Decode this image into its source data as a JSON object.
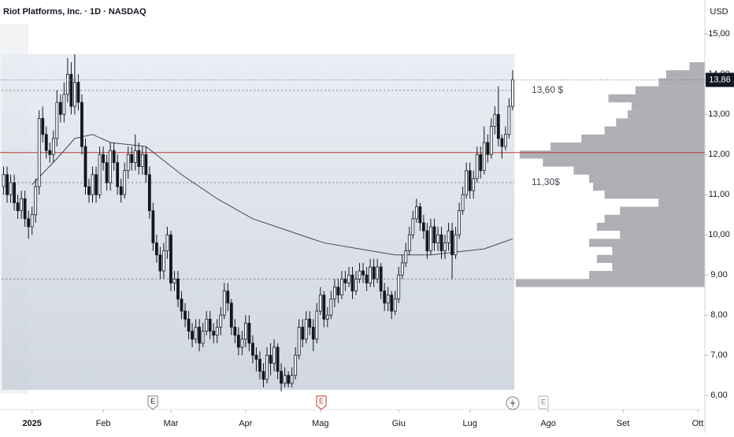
{
  "chart_data": {
    "type": "candlestick",
    "title": "Riot Platforms, Inc. · 1D · NASDAQ",
    "currency": "USD",
    "candle_color": "#131722",
    "xlim": [
      -1,
      197
    ],
    "xticks": [
      {
        "value": 8,
        "label": "2025"
      },
      {
        "value": 28,
        "label": "Feb"
      },
      {
        "value": 47,
        "label": "Mar"
      },
      {
        "value": 68,
        "label": "Apr"
      },
      {
        "value": 89,
        "label": "Mag"
      },
      {
        "value": 111,
        "label": "Giu"
      },
      {
        "value": 131,
        "label": "Lug"
      },
      {
        "value": 153,
        "label": "Ago"
      },
      {
        "value": 174,
        "label": "Set"
      },
      {
        "value": 195,
        "label": "Ott"
      }
    ],
    "ylim": [
      5.65,
      15.85
    ],
    "yticks": [
      {
        "value": 15,
        "label": "15,00"
      },
      {
        "value": 14,
        "label": "14,00"
      },
      {
        "value": 13,
        "label": "13,00"
      },
      {
        "value": 12,
        "label": "12,00"
      },
      {
        "value": 11,
        "label": "11,00"
      },
      {
        "value": 10,
        "label": "10,00"
      },
      {
        "value": 9,
        "label": "9,00"
      },
      {
        "value": 8,
        "label": "8,00"
      },
      {
        "value": 7,
        "label": "7,00"
      },
      {
        "value": 6,
        "label": "6,00"
      }
    ],
    "open": [
      11.2,
      11.5,
      11.0,
      11.3,
      10.8,
      10.6,
      10.9,
      10.4,
      10.2,
      10.5,
      11.2,
      12.9,
      12.5,
      12.1,
      12.0,
      12.4,
      13.3,
      13.0,
      13.5,
      14.0,
      13.2,
      13.8,
      13.3,
      12.2,
      11.2,
      11.0,
      11.5,
      11.0,
      12.0,
      11.8,
      11.3,
      12.1,
      11.8,
      11.2,
      11.0,
      11.6,
      12.0,
      11.8,
      12.1,
      11.7,
      12.0,
      11.5,
      10.6,
      9.8,
      9.5,
      9.1,
      9.6,
      10.0,
      8.8,
      8.9,
      8.4,
      8.1,
      7.9,
      7.6,
      7.4,
      7.7,
      7.3,
      7.6,
      7.9,
      7.6,
      7.5,
      7.7,
      8.0,
      8.6,
      8.3,
      7.7,
      7.5,
      7.2,
      7.4,
      7.8,
      7.3,
      7.0,
      6.9,
      6.6,
      6.4,
      7.0,
      6.8,
      7.2,
      6.6,
      6.3,
      6.5,
      6.3,
      6.5,
      7.0,
      7.7,
      7.4,
      7.9,
      7.7,
      7.4,
      8.1,
      8.5,
      7.9,
      8.0,
      8.4,
      8.7,
      8.5,
      8.9,
      8.8,
      9.0,
      8.6,
      8.9,
      9.1,
      9.0,
      8.8,
      9.2,
      8.9,
      9.2,
      8.6,
      8.3,
      8.5,
      8.1,
      8.4,
      9.0,
      9.3,
      9.6,
      10.0,
      10.4,
      10.7,
      10.3,
      10.1,
      9.6,
      10.2,
      9.8,
      10.0,
      9.6,
      9.8,
      10.1,
      9.5,
      10.0,
      10.6,
      11.0,
      11.6,
      11.1,
      11.4,
      12.0,
      11.6,
      12.3,
      12.0,
      12.7,
      13.0,
      12.4,
      12.2,
      12.5,
      13.2
    ],
    "high": [
      11.7,
      11.7,
      11.5,
      11.5,
      11.0,
      11.1,
      11.1,
      10.6,
      10.7,
      11.4,
      13.1,
      13.2,
      12.7,
      12.3,
      12.6,
      13.6,
      13.5,
      13.8,
      14.4,
      14.3,
      14.5,
      14.0,
      13.5,
      12.4,
      11.4,
      11.7,
      11.7,
      12.2,
      12.2,
      12.0,
      12.3,
      12.3,
      12.0,
      11.4,
      11.8,
      12.2,
      12.2,
      12.5,
      12.3,
      12.2,
      12.2,
      11.7,
      10.8,
      10.0,
      9.7,
      9.8,
      10.2,
      10.1,
      9.1,
      9.1,
      8.6,
      8.3,
      8.1,
      7.8,
      7.9,
      7.9,
      7.8,
      8.1,
      8.1,
      7.8,
      7.9,
      8.2,
      8.8,
      8.8,
      8.4,
      7.9,
      7.7,
      7.6,
      8.0,
      8.0,
      7.5,
      7.2,
      7.1,
      6.8,
      7.2,
      7.3,
      7.4,
      7.3,
      6.8,
      6.7,
      6.6,
      6.7,
      7.2,
      7.9,
      7.9,
      8.1,
      8.1,
      7.9,
      8.3,
      8.7,
      8.6,
      8.2,
      8.6,
      8.9,
      8.9,
      9.1,
      9.1,
      9.2,
      9.2,
      9.1,
      9.3,
      9.3,
      9.2,
      9.4,
      9.4,
      9.4,
      9.3,
      8.8,
      8.7,
      8.6,
      8.6,
      9.2,
      9.5,
      9.8,
      10.2,
      10.6,
      10.9,
      10.8,
      10.5,
      10.3,
      10.4,
      10.4,
      10.2,
      10.2,
      10.0,
      10.3,
      10.3,
      10.2,
      10.8,
      11.2,
      11.8,
      11.8,
      11.6,
      12.2,
      12.2,
      12.7,
      12.5,
      12.9,
      13.2,
      13.7,
      12.5,
      12.7,
      13.4,
      14.1
    ],
    "low": [
      11.0,
      10.8,
      10.8,
      10.6,
      10.4,
      10.4,
      10.2,
      9.9,
      10.0,
      10.3,
      11.0,
      12.3,
      11.9,
      11.8,
      11.8,
      12.2,
      12.8,
      12.8,
      13.3,
      13.0,
      13.0,
      13.1,
      12.0,
      11.0,
      10.8,
      10.8,
      10.8,
      10.9,
      11.6,
      11.1,
      11.1,
      11.6,
      11.0,
      10.8,
      10.9,
      11.4,
      11.6,
      11.6,
      11.5,
      11.5,
      11.3,
      10.4,
      9.6,
      9.3,
      8.9,
      8.9,
      9.4,
      8.6,
      8.6,
      8.2,
      7.9,
      7.7,
      7.4,
      7.2,
      7.3,
      7.1,
      7.2,
      7.5,
      7.4,
      7.3,
      7.3,
      7.5,
      7.9,
      8.1,
      7.5,
      7.3,
      7.0,
      7.0,
      7.2,
      7.1,
      6.8,
      6.6,
      6.4,
      6.2,
      6.3,
      6.5,
      6.6,
      6.4,
      6.1,
      6.2,
      6.2,
      6.2,
      6.4,
      6.9,
      7.2,
      7.3,
      7.5,
      7.1,
      7.3,
      8.0,
      7.7,
      7.7,
      7.9,
      8.2,
      8.3,
      8.4,
      8.6,
      8.7,
      8.4,
      8.5,
      8.8,
      8.8,
      8.6,
      8.7,
      8.7,
      8.8,
      8.4,
      8.1,
      8.1,
      7.9,
      8.0,
      8.3,
      8.9,
      9.2,
      9.5,
      9.9,
      10.3,
      10.1,
      9.9,
      9.4,
      9.5,
      9.6,
      9.6,
      9.4,
      9.4,
      9.6,
      8.9,
      9.4,
      9.9,
      10.5,
      10.9,
      10.9,
      10.9,
      11.3,
      11.4,
      11.5,
      11.8,
      11.9,
      12.5,
      12.2,
      11.9,
      12.1,
      12.4,
      13.1
    ],
    "close": [
      11.5,
      11.0,
      11.3,
      10.8,
      10.6,
      10.9,
      10.4,
      10.2,
      10.5,
      11.2,
      12.9,
      12.5,
      12.1,
      12.0,
      12.4,
      13.3,
      13.0,
      13.5,
      14.0,
      13.2,
      13.8,
      13.3,
      12.2,
      11.2,
      11.0,
      11.5,
      11.0,
      12.0,
      11.8,
      11.3,
      12.1,
      11.8,
      11.2,
      11.0,
      11.6,
      12.0,
      11.8,
      12.1,
      11.7,
      12.0,
      11.5,
      10.6,
      9.8,
      9.5,
      9.1,
      9.6,
      10.0,
      8.8,
      8.9,
      8.4,
      8.1,
      7.9,
      7.6,
      7.4,
      7.7,
      7.3,
      7.6,
      7.9,
      7.6,
      7.5,
      7.7,
      8.0,
      8.6,
      8.3,
      7.7,
      7.5,
      7.2,
      7.4,
      7.8,
      7.3,
      7.0,
      6.9,
      6.6,
      6.4,
      7.0,
      6.8,
      7.2,
      6.6,
      6.3,
      6.5,
      6.3,
      6.5,
      7.0,
      7.7,
      7.4,
      7.9,
      7.7,
      7.4,
      8.1,
      8.5,
      7.9,
      8.0,
      8.4,
      8.7,
      8.5,
      8.9,
      8.8,
      9.0,
      8.6,
      8.9,
      9.1,
      9.0,
      8.8,
      9.2,
      8.9,
      9.2,
      8.6,
      8.3,
      8.5,
      8.1,
      8.4,
      9.0,
      9.3,
      9.6,
      10.0,
      10.4,
      10.7,
      10.3,
      10.1,
      9.6,
      10.2,
      9.8,
      10.0,
      9.6,
      9.8,
      10.1,
      9.5,
      10.0,
      10.6,
      11.0,
      11.6,
      11.1,
      11.4,
      12.0,
      11.6,
      12.3,
      12.0,
      12.7,
      13.0,
      12.4,
      12.2,
      12.5,
      13.2,
      13.86
    ],
    "moving_average": {
      "color": "#434651",
      "x": [
        8,
        15,
        20,
        25,
        30,
        40,
        50,
        60,
        70,
        80,
        90,
        100,
        110,
        120,
        130,
        135,
        143
      ],
      "values": [
        11.25,
        11.9,
        12.4,
        12.5,
        12.3,
        12.2,
        11.5,
        10.9,
        10.4,
        10.1,
        9.8,
        9.65,
        9.5,
        9.5,
        9.6,
        9.65,
        9.9
      ]
    },
    "range_box": {
      "x": [
        -0.5,
        143.5
      ],
      "y": [
        6.14,
        14.5
      ]
    },
    "levels": [
      {
        "value": 13.6,
        "label": "13,60 $",
        "style": "dotted",
        "color": "#787b86"
      },
      {
        "value": 11.3,
        "label": "11,30$",
        "style": "dotted",
        "color": "#787b86"
      },
      {
        "value": 12.05,
        "style": "solid",
        "color": "#c0392b"
      },
      {
        "value": 8.9,
        "style": "dotted",
        "color": "#787b86"
      }
    ],
    "last_price": {
      "value": 13.86,
      "label": "13,86"
    },
    "volume_profile": {
      "color": "#8a8d96",
      "prices": [
        14.2,
        14.0,
        13.8,
        13.6,
        13.4,
        13.2,
        13.0,
        12.8,
        12.6,
        12.4,
        12.2,
        12.0,
        11.8,
        11.6,
        11.4,
        11.2,
        11.0,
        10.8,
        10.6,
        10.4,
        10.2,
        10.0,
        9.8,
        9.6,
        9.4,
        9.2,
        9.0,
        8.8
      ],
      "values": [
        20,
        50,
        60,
        90,
        125,
        95,
        100,
        115,
        130,
        160,
        200,
        240,
        210,
        170,
        150,
        145,
        130,
        60,
        110,
        130,
        140,
        110,
        150,
        120,
        140,
        120,
        150,
        245
      ]
    },
    "events": [
      "E",
      "E",
      "E"
    ]
  }
}
